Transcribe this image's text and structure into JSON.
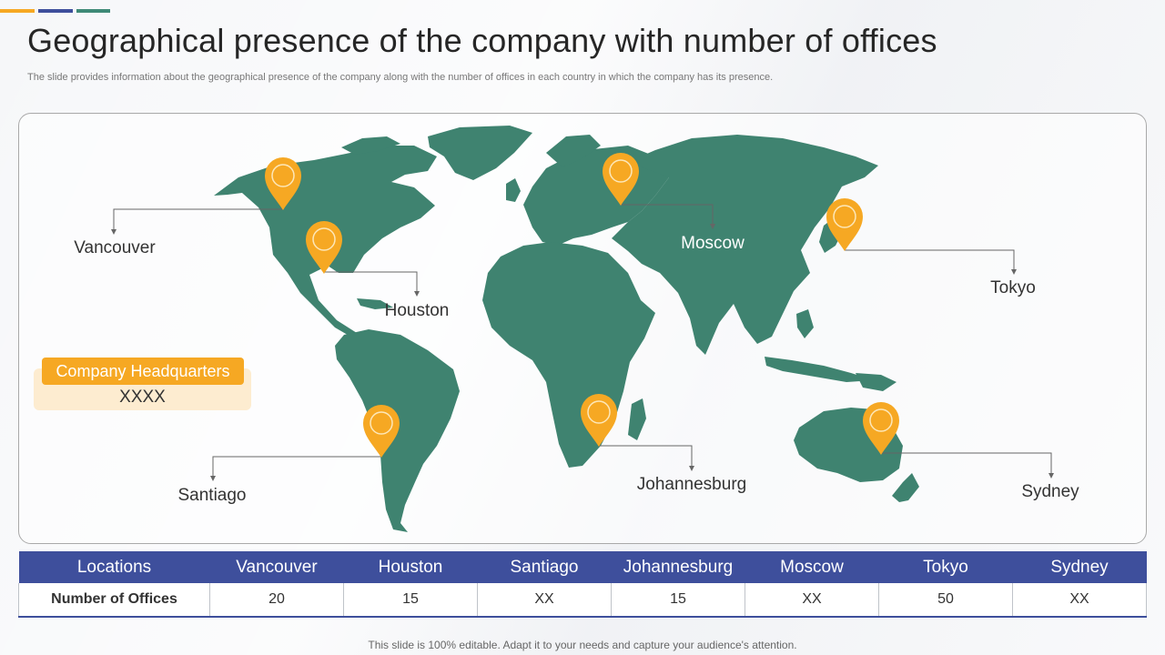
{
  "slide": {
    "title": "Geographical presence of the company with number of offices",
    "subtitle": "The slide provides information about the geographical presence of the company along with the number of offices in each country in which the company has its presence.",
    "footer": "This slide is 100% editable. Adapt it to your needs and capture your audience's attention."
  },
  "colors": {
    "accent_yellow": "#f6a823",
    "accent_blue": "#3e4f9c",
    "accent_teal": "#3f8a77",
    "map_green": "#3f8370",
    "pin_orange": "#f6a823",
    "hq_bg": "#fdecd0"
  },
  "map": {
    "locations": [
      {
        "name": "Vancouver"
      },
      {
        "name": "Houston"
      },
      {
        "name": "Santiago"
      },
      {
        "name": "Johannesburg"
      },
      {
        "name": "Moscow"
      },
      {
        "name": "Tokyo"
      },
      {
        "name": "Sydney"
      }
    ],
    "pin_icon": "map-pin-icon"
  },
  "headquarters": {
    "label": "Company Headquarters",
    "value": "XXXX"
  },
  "table": {
    "headers": [
      "Locations",
      "Vancouver",
      "Houston",
      "Santiago",
      "Johannesburg",
      "Moscow",
      "Tokyo",
      "Sydney"
    ],
    "row_label": "Number of Offices",
    "values": [
      "20",
      "15",
      "XX",
      "15",
      "XX",
      "50",
      "XX"
    ]
  }
}
